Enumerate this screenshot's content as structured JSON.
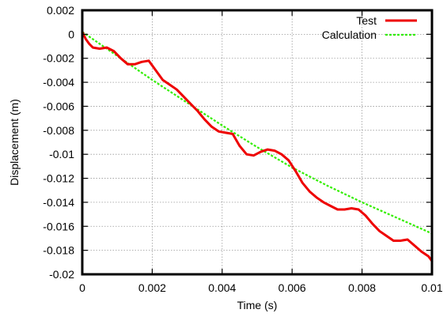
{
  "chart_data": {
    "type": "line",
    "title": "",
    "xlabel": "Time (s)",
    "ylabel": "Displacement (m)",
    "xlim": [
      0,
      0.01
    ],
    "ylim": [
      -0.02,
      0.002
    ],
    "x_ticks": [
      0,
      0.002,
      0.004,
      0.006,
      0.008,
      0.01
    ],
    "x_tick_labels": [
      "0",
      "0.002",
      "0.004",
      "0.006",
      "0.008",
      "0.01"
    ],
    "y_ticks": [
      0.002,
      0,
      -0.002,
      -0.004,
      -0.006,
      -0.008,
      -0.01,
      -0.012,
      -0.014,
      -0.016,
      -0.018,
      -0.02
    ],
    "y_tick_labels": [
      "0.002",
      "0",
      "-0.002",
      "-0.004",
      "-0.006",
      "-0.008",
      "-0.01",
      "-0.012",
      "-0.014",
      "-0.016",
      "-0.018",
      "-0.02"
    ],
    "grid": true,
    "legend_position": "top-right",
    "series": [
      {
        "name": "Test",
        "color": "#ee0000",
        "style": "solid",
        "x": [
          0,
          0.0001,
          0.0002,
          0.0003,
          0.0005,
          0.0007,
          0.0009,
          0.0011,
          0.0013,
          0.0015,
          0.0017,
          0.0019,
          0.0021,
          0.0023,
          0.0025,
          0.0027,
          0.0029,
          0.0031,
          0.0033,
          0.0035,
          0.0037,
          0.0039,
          0.0041,
          0.0043,
          0.0045,
          0.0047,
          0.0049,
          0.0051,
          0.0053,
          0.0055,
          0.0057,
          0.0059,
          0.0061,
          0.0063,
          0.0065,
          0.0067,
          0.0069,
          0.0071,
          0.0073,
          0.0075,
          0.0077,
          0.0079,
          0.0081,
          0.0083,
          0.0085,
          0.0087,
          0.0089,
          0.0091,
          0.0093,
          0.0095,
          0.0097,
          0.0099,
          0.01
        ],
        "y": [
          0.0002,
          -0.0004,
          -0.0008,
          -0.0011,
          -0.0012,
          -0.0011,
          -0.0014,
          -0.002,
          -0.0025,
          -0.0025,
          -0.0023,
          -0.0022,
          -0.003,
          -0.0038,
          -0.0042,
          -0.0046,
          -0.0052,
          -0.0058,
          -0.0064,
          -0.0071,
          -0.0077,
          -0.0081,
          -0.0082,
          -0.0083,
          -0.0093,
          -0.01,
          -0.0101,
          -0.0098,
          -0.0096,
          -0.0097,
          -0.01,
          -0.0105,
          -0.0114,
          -0.0124,
          -0.0131,
          -0.0136,
          -0.014,
          -0.0143,
          -0.0146,
          -0.0146,
          -0.0145,
          -0.0146,
          -0.0151,
          -0.0158,
          -0.0164,
          -0.0168,
          -0.0172,
          -0.0172,
          -0.0171,
          -0.0176,
          -0.0181,
          -0.0185,
          -0.0189
        ]
      },
      {
        "name": "Calculation",
        "color": "#33ee00",
        "style": "dashed",
        "x": [
          0,
          0.001,
          0.002,
          0.003,
          0.004,
          0.005,
          0.006,
          0.007,
          0.008,
          0.009,
          0.01
        ],
        "y": [
          0.0002,
          -0.0018,
          -0.0038,
          -0.0057,
          -0.0076,
          -0.0094,
          -0.0111,
          -0.0126,
          -0.014,
          -0.0153,
          -0.0166
        ]
      }
    ]
  }
}
